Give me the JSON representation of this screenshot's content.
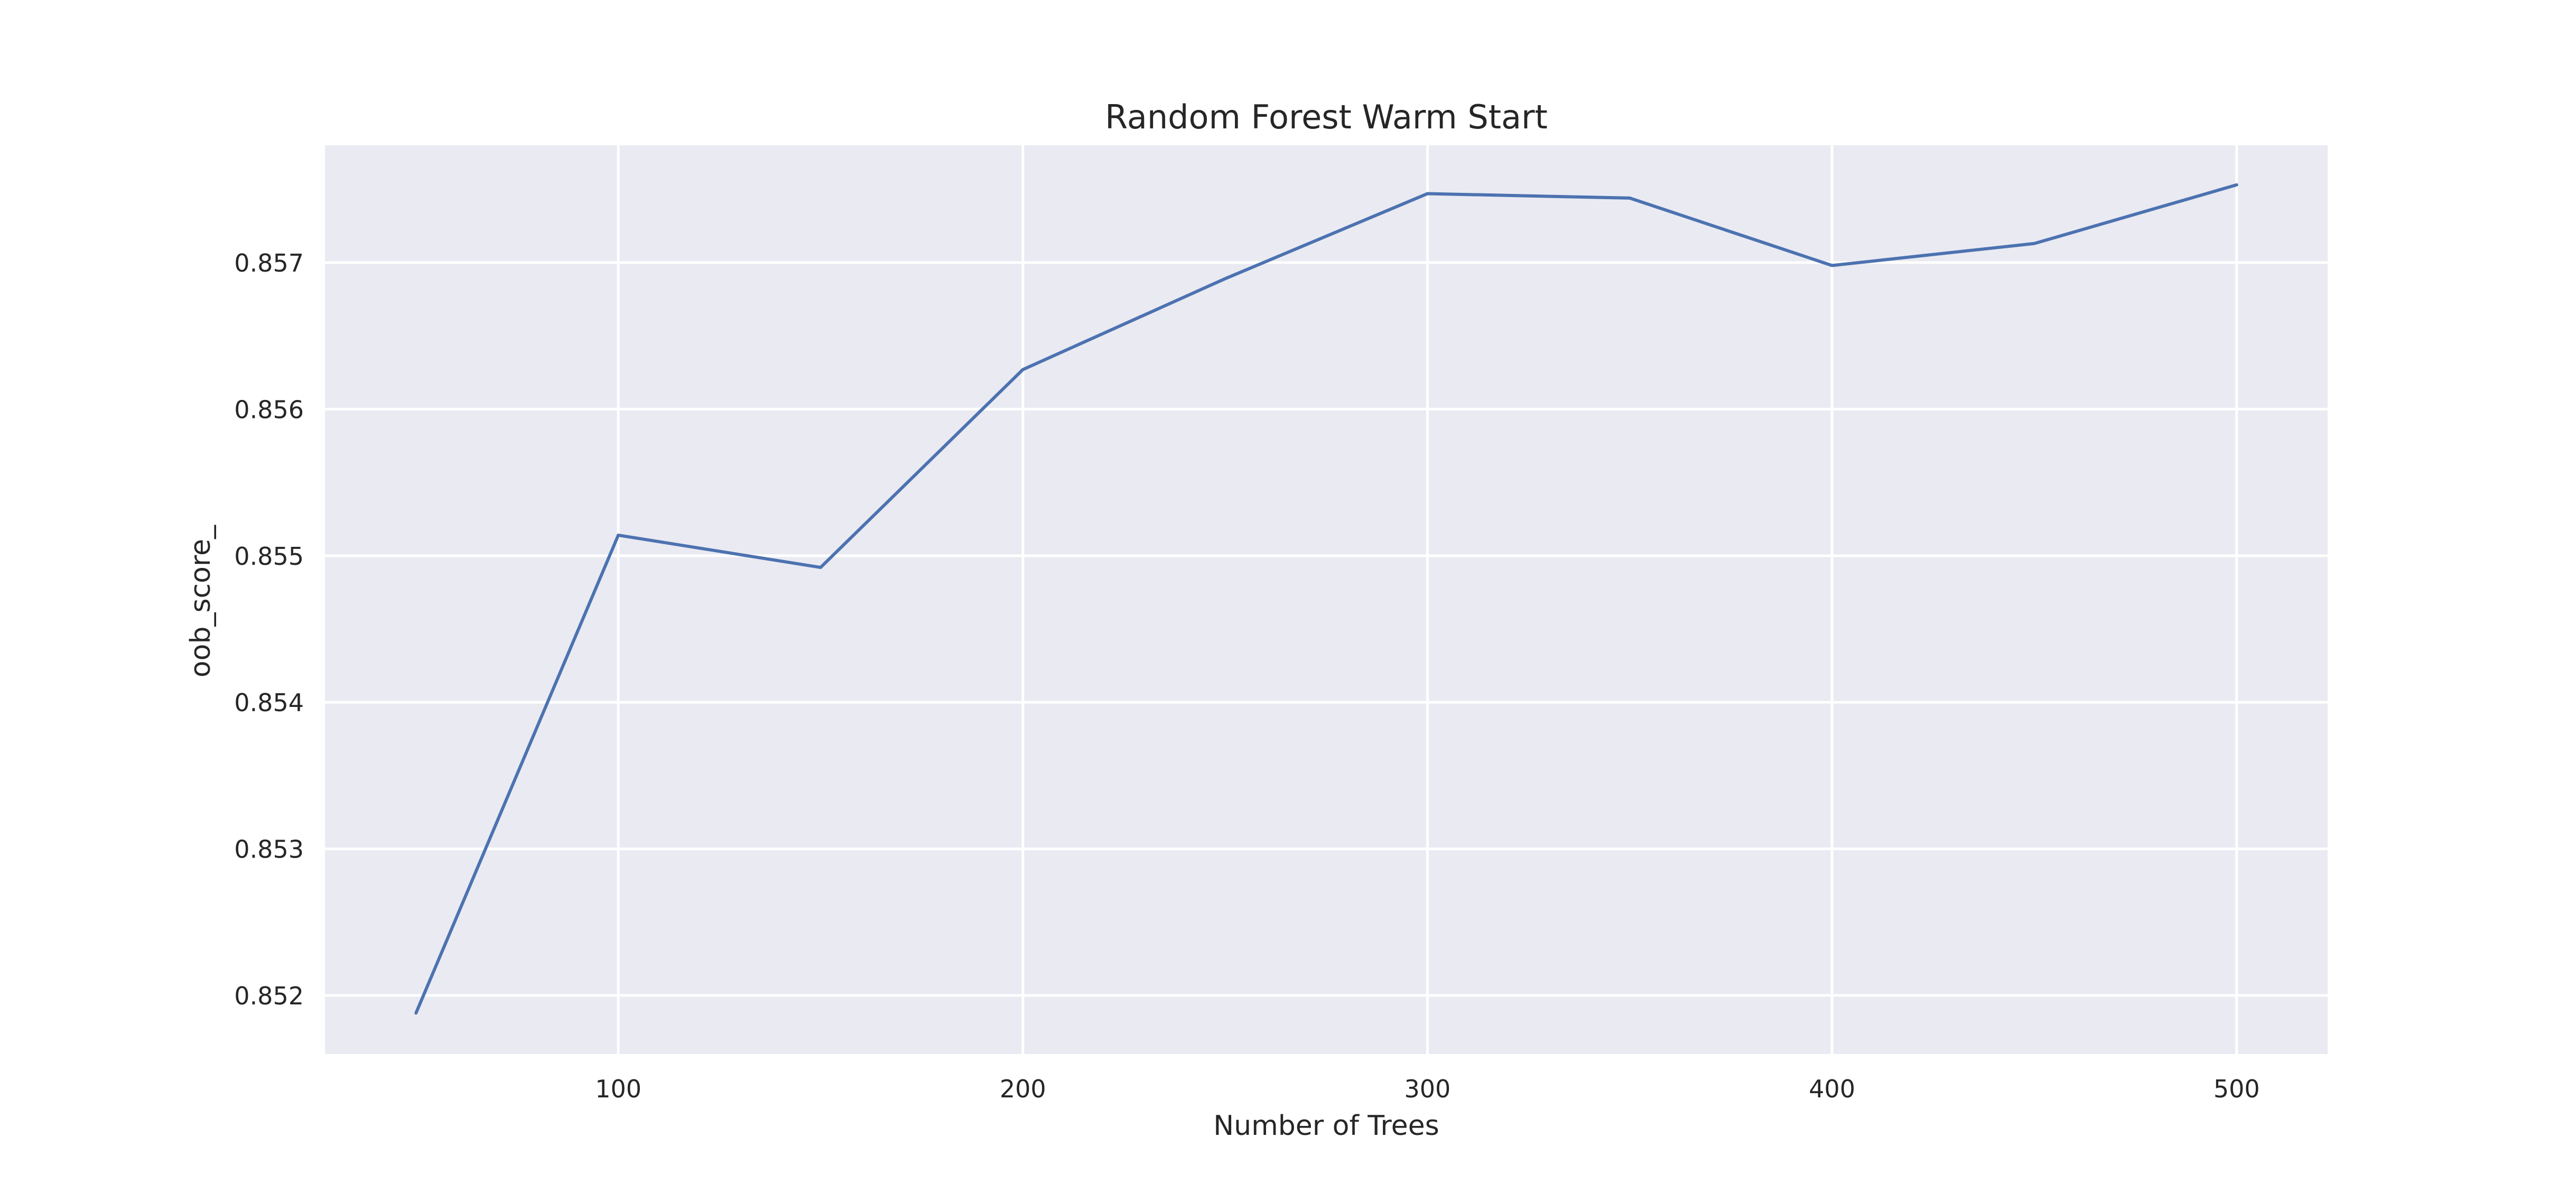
{
  "chart_data": {
    "type": "line",
    "title": "Random Forest Warm Start",
    "xlabel": "Number of Trees",
    "ylabel": "oob_score_",
    "x": [
      50,
      100,
      150,
      200,
      250,
      300,
      350,
      400,
      450,
      500
    ],
    "series": [
      {
        "name": "",
        "values": [
          0.85188,
          0.85514,
          0.85492,
          0.85627,
          0.85689,
          0.85747,
          0.85744,
          0.85698,
          0.85713,
          0.85753
        ]
      }
    ],
    "xlim": [
      27.5,
      522.5
    ],
    "ylim": [
      0.8516,
      0.8578
    ],
    "xticks": [
      100,
      200,
      300,
      400,
      500
    ],
    "xtick_labels": [
      "100",
      "200",
      "300",
      "400",
      "500"
    ],
    "yticks": [
      0.852,
      0.853,
      0.854,
      0.855,
      0.856,
      0.857
    ],
    "ytick_labels": [
      "0.852",
      "0.853",
      "0.854",
      "0.855",
      "0.856",
      "0.857"
    ],
    "grid": true,
    "style": {
      "background": "#eaeaf2",
      "line_color": "#4c72b0",
      "grid_color": "#ffffff"
    }
  }
}
